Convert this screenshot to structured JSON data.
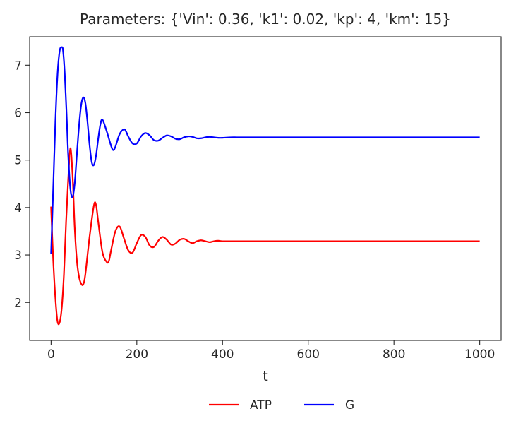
{
  "chart_data": {
    "type": "line",
    "title": "Parameters: {'Vin': 0.36, 'k1': 0.02, 'kp': 4, 'km': 15}",
    "xlabel": "t",
    "ylabel": "",
    "xlim": [
      -50,
      1050
    ],
    "ylim": [
      1.2,
      7.6
    ],
    "xticks": [
      0,
      200,
      400,
      600,
      800,
      1000
    ],
    "xtick_labels": [
      "0",
      "200",
      "400",
      "600",
      "800",
      "1000"
    ],
    "yticks": [
      2,
      3,
      4,
      5,
      6,
      7
    ],
    "ytick_labels": [
      "2",
      "3",
      "4",
      "5",
      "6",
      "7"
    ],
    "grid": false,
    "legend_position": "bottom-center",
    "series": [
      {
        "name": "ATP",
        "color": "#ff0000",
        "x": [
          0,
          5,
          10,
          15,
          20,
          25,
          30,
          35,
          40,
          45,
          50,
          55,
          60,
          65,
          70,
          75,
          80,
          90,
          100,
          105,
          110,
          120,
          130,
          135,
          140,
          150,
          160,
          170,
          180,
          190,
          200,
          210,
          220,
          230,
          240,
          250,
          260,
          270,
          280,
          290,
          300,
          310,
          320,
          330,
          340,
          350,
          360,
          370,
          380,
          390,
          400,
          420,
          440,
          460,
          480,
          500,
          600,
          700,
          800,
          900,
          1000
        ],
        "y": [
          4.02,
          2.9,
          2.1,
          1.6,
          1.58,
          1.9,
          2.6,
          3.7,
          4.6,
          5.25,
          4.7,
          3.6,
          2.9,
          2.55,
          2.4,
          2.38,
          2.6,
          3.4,
          4.05,
          4.05,
          3.7,
          3.05,
          2.85,
          2.88,
          3.1,
          3.5,
          3.6,
          3.35,
          3.1,
          3.05,
          3.25,
          3.42,
          3.38,
          3.2,
          3.17,
          3.3,
          3.38,
          3.32,
          3.22,
          3.24,
          3.32,
          3.34,
          3.29,
          3.25,
          3.29,
          3.31,
          3.29,
          3.27,
          3.29,
          3.3,
          3.29,
          3.29,
          3.29,
          3.29,
          3.29,
          3.29,
          3.29,
          3.29,
          3.29,
          3.29,
          3.29
        ]
      },
      {
        "name": "G",
        "color": "#0000ff",
        "x": [
          0,
          5,
          10,
          15,
          20,
          25,
          28,
          32,
          36,
          40,
          45,
          50,
          55,
          60,
          65,
          70,
          75,
          80,
          85,
          90,
          95,
          100,
          105,
          110,
          115,
          120,
          130,
          140,
          145,
          150,
          160,
          170,
          175,
          180,
          190,
          200,
          210,
          220,
          230,
          240,
          250,
          260,
          270,
          280,
          290,
          300,
          310,
          320,
          330,
          340,
          350,
          360,
          370,
          380,
          390,
          400,
          420,
          440,
          460,
          480,
          500,
          600,
          700,
          800,
          900,
          1000
        ],
        "y": [
          3.02,
          4.4,
          5.8,
          6.8,
          7.3,
          7.38,
          7.3,
          6.8,
          6.0,
          5.1,
          4.4,
          4.22,
          4.5,
          5.1,
          5.7,
          6.15,
          6.32,
          6.2,
          5.8,
          5.3,
          4.95,
          4.9,
          5.1,
          5.45,
          5.75,
          5.85,
          5.6,
          5.3,
          5.21,
          5.28,
          5.55,
          5.65,
          5.6,
          5.5,
          5.35,
          5.35,
          5.5,
          5.57,
          5.52,
          5.42,
          5.41,
          5.47,
          5.52,
          5.5,
          5.45,
          5.44,
          5.48,
          5.5,
          5.49,
          5.46,
          5.46,
          5.48,
          5.49,
          5.48,
          5.47,
          5.47,
          5.48,
          5.48,
          5.48,
          5.48,
          5.48,
          5.48,
          5.48,
          5.48,
          5.48,
          5.48
        ]
      }
    ]
  }
}
